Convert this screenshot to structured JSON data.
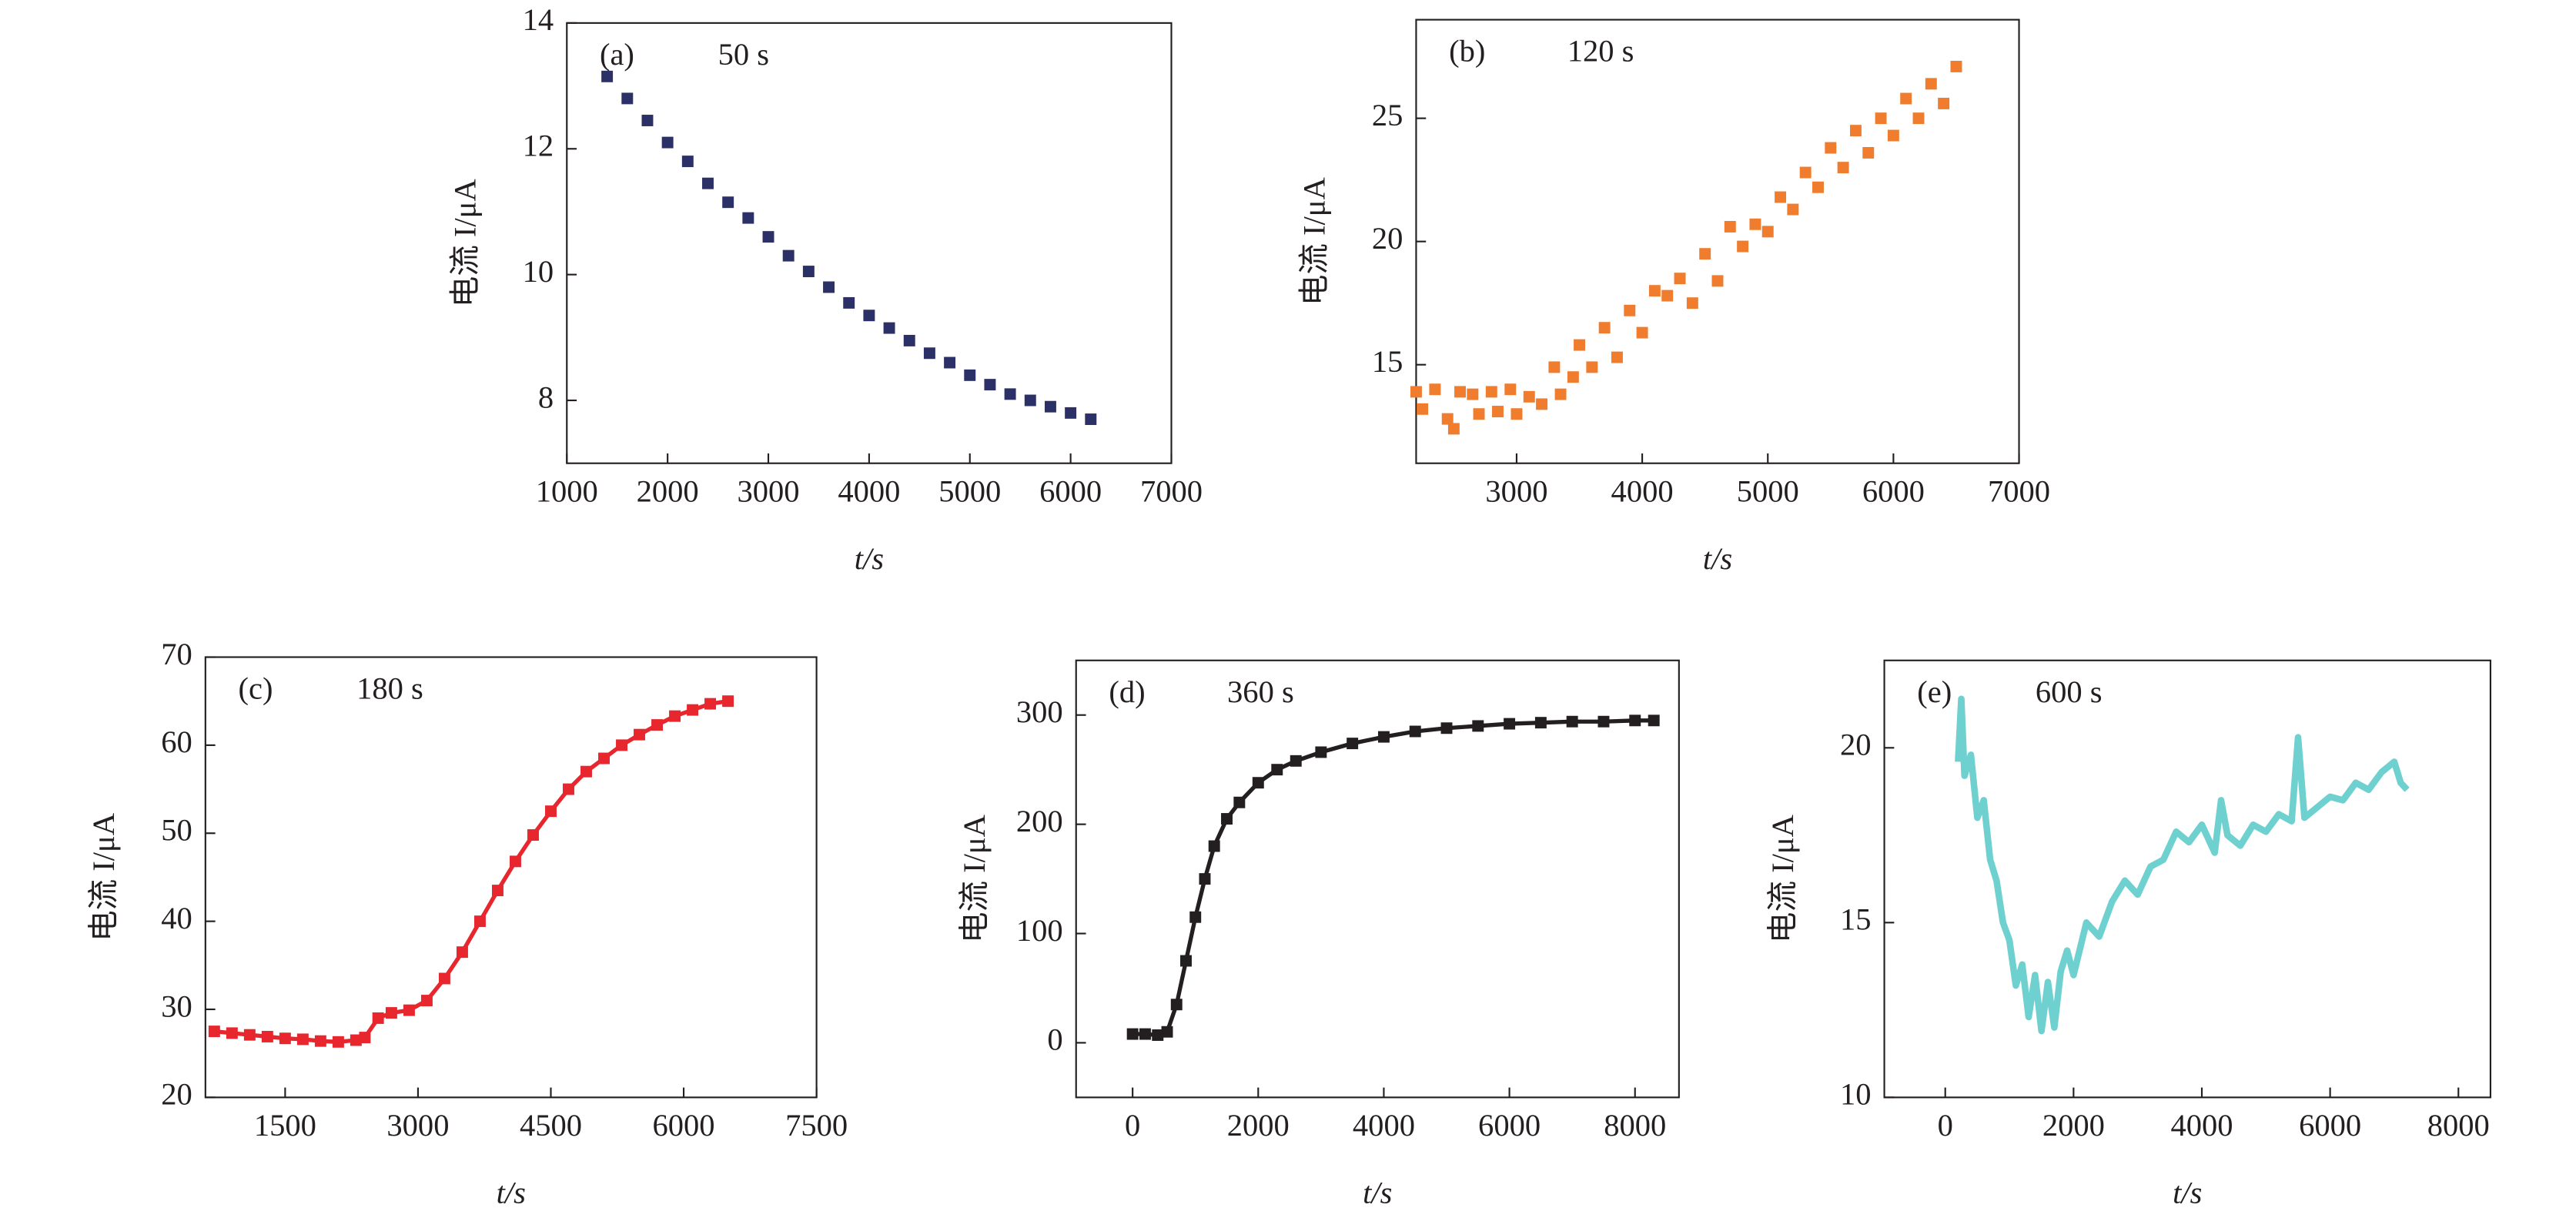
{
  "chart_data": [
    {
      "type": "scatter",
      "label": "(a)",
      "annotation": "50 s",
      "xlabel": "t/s",
      "ylabel": "电流 I/μA",
      "color": "#2b3066",
      "xlim": [
        1000,
        7000
      ],
      "xticks": [
        1000,
        2000,
        3000,
        4000,
        5000,
        6000,
        7000
      ],
      "ylim": [
        7,
        14
      ],
      "yticks": [
        8,
        10,
        12,
        14
      ],
      "x": [
        1400,
        1600,
        1800,
        2000,
        2200,
        2400,
        2600,
        2800,
        3000,
        3200,
        3400,
        3600,
        3800,
        4000,
        4200,
        4400,
        4600,
        4800,
        5000,
        5200,
        5400,
        5600,
        5800,
        6000,
        6200
      ],
      "values": [
        13.15,
        12.8,
        12.45,
        12.1,
        11.8,
        11.45,
        11.15,
        10.9,
        10.6,
        10.3,
        10.05,
        9.8,
        9.55,
        9.35,
        9.15,
        8.95,
        8.75,
        8.6,
        8.4,
        8.25,
        8.1,
        8.0,
        7.9,
        7.8,
        7.7
      ]
    },
    {
      "type": "scatter",
      "label": "(b)",
      "annotation": "120 s",
      "xlabel": "t/s",
      "ylabel": "电流 I/μA",
      "color": "#f07c2e",
      "xlim": [
        2200,
        7000
      ],
      "xticks": [
        3000,
        4000,
        5000,
        6000,
        7000
      ],
      "ylim": [
        11,
        29
      ],
      "yticks": [
        15,
        20,
        25
      ],
      "x": [
        2200,
        2250,
        2350,
        2450,
        2500,
        2550,
        2650,
        2700,
        2800,
        2850,
        2950,
        3000,
        3100,
        3200,
        3300,
        3350,
        3450,
        3500,
        3600,
        3700,
        3800,
        3900,
        4000,
        4100,
        4200,
        4300,
        4400,
        4500,
        4600,
        4700,
        4800,
        4900,
        5000,
        5100,
        5200,
        5300,
        5400,
        5500,
        5600,
        5700,
        5800,
        5900,
        6000,
        6100,
        6200,
        6300,
        6400,
        6500
      ],
      "values": [
        13.9,
        13.2,
        14.0,
        12.8,
        12.4,
        13.9,
        13.8,
        13.0,
        13.9,
        13.1,
        14.0,
        13.0,
        13.7,
        13.4,
        14.9,
        13.8,
        14.5,
        15.8,
        14.9,
        16.5,
        15.3,
        17.2,
        16.3,
        18.0,
        17.8,
        18.5,
        17.5,
        19.5,
        18.4,
        20.6,
        19.8,
        20.7,
        20.4,
        21.8,
        21.3,
        22.8,
        22.2,
        23.8,
        23.0,
        24.5,
        23.6,
        25.0,
        24.3,
        25.8,
        25.0,
        26.4,
        25.6,
        27.1
      ]
    },
    {
      "type": "line",
      "markers": true,
      "label": "(c)",
      "annotation": "180 s",
      "xlabel": "t/s",
      "ylabel": "电流 I/μA",
      "color": "#e8262d",
      "xlim": [
        600,
        7500
      ],
      "xticks": [
        1500,
        3000,
        4500,
        6000,
        7500
      ],
      "ylim": [
        20,
        70
      ],
      "yticks": [
        20,
        30,
        40,
        50,
        60,
        70
      ],
      "x": [
        700,
        900,
        1100,
        1300,
        1500,
        1700,
        1900,
        2100,
        2300,
        2400,
        2550,
        2700,
        2900,
        3100,
        3300,
        3500,
        3700,
        3900,
        4100,
        4300,
        4500,
        4700,
        4900,
        5100,
        5300,
        5500,
        5700,
        5900,
        6100,
        6300,
        6500
      ],
      "values": [
        27.5,
        27.3,
        27.1,
        26.9,
        26.7,
        26.6,
        26.4,
        26.3,
        26.5,
        26.8,
        29.0,
        29.6,
        29.9,
        31.0,
        33.5,
        36.5,
        40.0,
        43.5,
        46.8,
        49.8,
        52.5,
        55.0,
        57.0,
        58.5,
        60.0,
        61.2,
        62.3,
        63.3,
        64.0,
        64.7,
        65.0
      ]
    },
    {
      "type": "line",
      "markers": true,
      "label": "(d)",
      "annotation": "360 s",
      "xlabel": "t/s",
      "ylabel": "电流 I/μA",
      "color": "#231f20",
      "xlim": [
        -900,
        8700
      ],
      "xticks": [
        0,
        2000,
        4000,
        6000,
        8000
      ],
      "ylim": [
        -50,
        350
      ],
      "yticks": [
        0,
        100,
        200,
        300
      ],
      "x": [
        0,
        200,
        400,
        550,
        700,
        850,
        1000,
        1150,
        1300,
        1500,
        1700,
        2000,
        2300,
        2600,
        3000,
        3500,
        4000,
        4500,
        5000,
        5500,
        6000,
        6500,
        7000,
        7500,
        8000,
        8300
      ],
      "values": [
        8,
        8,
        7,
        10,
        35,
        75,
        115,
        150,
        180,
        205,
        220,
        238,
        250,
        258,
        266,
        274,
        280,
        285,
        288,
        290,
        292,
        293,
        294,
        294,
        295,
        295
      ]
    },
    {
      "type": "line",
      "markers": false,
      "label": "(e)",
      "annotation": "600 s",
      "xlabel": "t/s",
      "ylabel": "电流 I/μA",
      "color": "#6fd0d0",
      "xlim": [
        -950,
        8500
      ],
      "xticks": [
        0,
        2000,
        4000,
        6000,
        8000
      ],
      "ylim": [
        10,
        22.5
      ],
      "yticks": [
        10,
        15,
        20
      ],
      "x": [
        200,
        250,
        300,
        400,
        500,
        600,
        700,
        800,
        900,
        1000,
        1100,
        1200,
        1300,
        1400,
        1500,
        1600,
        1700,
        1800,
        1900,
        2000,
        2200,
        2400,
        2600,
        2800,
        3000,
        3200,
        3400,
        3600,
        3800,
        4000,
        4200,
        4300,
        4400,
        4600,
        4800,
        5000,
        5200,
        5400,
        5500,
        5600,
        5800,
        6000,
        6200,
        6400,
        6600,
        6800,
        7000,
        7100,
        7200
      ],
      "values": [
        19.6,
        21.4,
        19.2,
        19.8,
        18.0,
        18.5,
        16.8,
        16.2,
        15.0,
        14.5,
        13.2,
        13.8,
        12.3,
        13.5,
        11.9,
        13.3,
        12.0,
        13.6,
        14.2,
        13.5,
        15.0,
        14.6,
        15.6,
        16.2,
        15.8,
        16.6,
        16.8,
        17.6,
        17.3,
        17.8,
        17.0,
        18.5,
        17.5,
        17.2,
        17.8,
        17.6,
        18.1,
        17.9,
        20.3,
        18.0,
        18.3,
        18.6,
        18.5,
        19.0,
        18.8,
        19.3,
        19.6,
        19.0,
        18.8
      ]
    }
  ]
}
